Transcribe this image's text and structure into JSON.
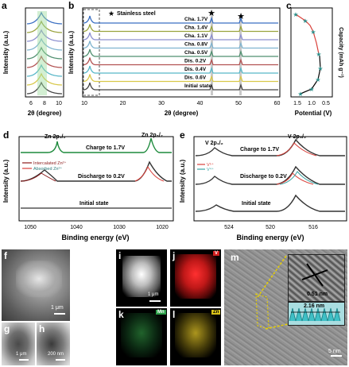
{
  "panels": {
    "a": {
      "letter": "a",
      "ylabel": "Intensity (a.u.)",
      "xlabel": "2θ (degree)",
      "xticks": [
        "6",
        "8",
        "10"
      ]
    },
    "b": {
      "letter": "b",
      "ylabel": "Intensity (a.u.)",
      "xlabel": "2θ (degree)",
      "xticks": [
        "10",
        "20",
        "30",
        "40",
        "50",
        "60"
      ],
      "legend_star": "Stainless steel",
      "traces": [
        {
          "label": "Cha. 1.7V",
          "color": "#3a6fc2"
        },
        {
          "label": "Cha. 1.4V",
          "color": "#9aa33e"
        },
        {
          "label": "Cha. 1.1V",
          "color": "#8c8fcf"
        },
        {
          "label": "Cha. 0.8V",
          "color": "#7fb4cf"
        },
        {
          "label": "Cha. 0.5V",
          "color": "#4f8f6f"
        },
        {
          "label": "Dis. 0.2V",
          "color": "#b25252"
        },
        {
          "label": "Dis. 0.4V",
          "color": "#58b7c8"
        },
        {
          "label": "Dis. 0.6V",
          "color": "#d8c84a"
        },
        {
          "label": "Initial state",
          "color": "#444444"
        }
      ]
    },
    "c": {
      "letter": "c",
      "ylabel": "Capacity (mAh g⁻¹)",
      "xlabel": "Potential (V)",
      "xticks": [
        "1.5",
        "1.0",
        "0.5"
      ]
    },
    "d": {
      "letter": "d",
      "ylabel": "Intensity (a.u.)",
      "xlabel": "Binding energy (eV)",
      "xticks": [
        "1050",
        "1040",
        "1030",
        "1020"
      ],
      "peak1": "Zn 2p₁/₂",
      "peak2": "Zn 2p₃/₂",
      "row_top": "Charge to 1.7V",
      "row_mid": "Discharge to 0.2V",
      "row_bot": "Initial state",
      "legend": [
        "Intercalated Zn²⁺",
        "Absorbed Zn²⁺"
      ]
    },
    "e": {
      "letter": "e",
      "ylabel": "Intensity (a.u.)",
      "xlabel": "Binding energy (eV)",
      "xticks": [
        "524",
        "520",
        "516"
      ],
      "peak1": "V 2p₁/₂",
      "peak2": "V 2p₃/₂",
      "row_top": "Charge to 1.7V",
      "row_mid": "Discharge to 0.2V",
      "row_bot": "Initial state",
      "legend": [
        "V⁵⁺",
        "V⁴⁺"
      ]
    },
    "f": {
      "letter": "f",
      "scale": "1 μm"
    },
    "g": {
      "letter": "g",
      "scale": "1 μm"
    },
    "h": {
      "letter": "h",
      "scale": "200 nm"
    },
    "i": {
      "letter": "i",
      "scale": "1 μm"
    },
    "j": {
      "letter": "j",
      "tag": "V"
    },
    "k": {
      "letter": "k",
      "tag": "Mn"
    },
    "l": {
      "letter": "l",
      "tag": "Zn"
    },
    "m": {
      "letter": "m",
      "scale": "5 nm",
      "d1": "0.51 nm",
      "d2": "2.16 nm"
    }
  },
  "colors": {
    "axis": "#000000",
    "green_fill": "#5fbf6f",
    "red_curve": "#d9403a",
    "zn_mid": "#8b1a1a",
    "v5": "#d9403a",
    "v4": "#3aa3a3",
    "map_v": "#d42020",
    "map_mn": "#2ea04a",
    "map_zn": "#d9c21a"
  }
}
